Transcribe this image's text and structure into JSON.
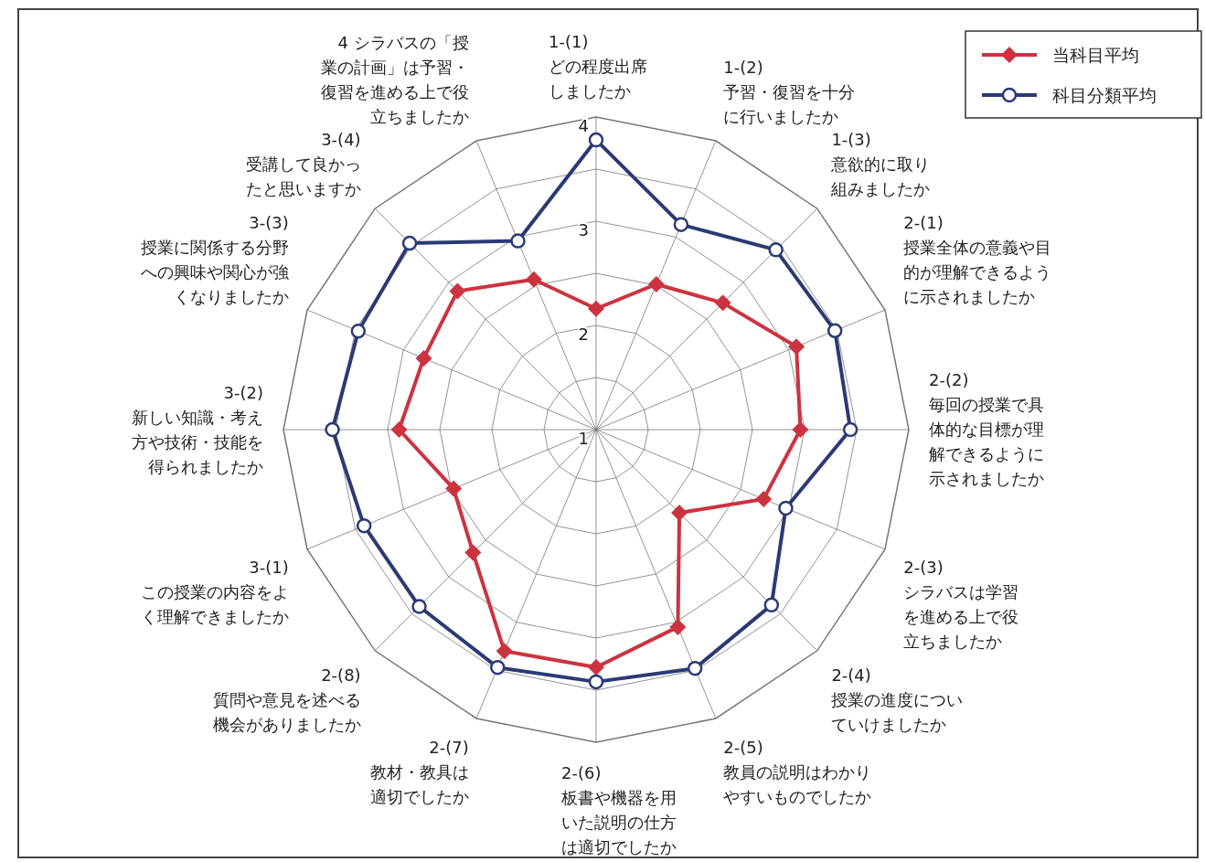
{
  "chart_data": {
    "type": "radar",
    "categories": [
      "1-(1)\nどの程度出席しましたか",
      "1-(2)\n予習・復習を十分に行いましたか",
      "1-(3)\n意欲的に取り組みましたか",
      "2-(1)\n授業全体の意義や目的が理解できるように示されましたか",
      "2-(2)\n毎回の授業で具体的な目標が理解できるように示されましたか",
      "2-(3)\nシラバスは学習を進める上で役立ちましたか",
      "2-(4)\n授業の進度についていけましたか",
      "2-(5)\n教員の説明はわかりやすいものでしたか",
      "2-(6)\n板書や機器を用いた説明の仕方は適切でしたか",
      "2-(7)\n教材・教具は適切でしたか",
      "2-(8)\n質問や意見を述べる機会がありましたか",
      "3-(1)\nこの授業の内容をよく理解できましたか",
      "3-(2)\n新しい知識・考え方や技術・技能を得られましたか",
      "3-(3)\n授業に関係する分野への興味や関心が強くなりましたか",
      "3-(4)\n受講して良かったと思いますか",
      "4 シラバスの「授業の計画」は予習・復習を進める上で役立ちましたか"
    ],
    "series": [
      {
        "name": "当科目平均",
        "color": "#cc3340",
        "marker": "diamond",
        "values": [
          2.16,
          2.51,
          2.72,
          3.08,
          2.96,
          2.74,
          2.13,
          3.05,
          3.28,
          3.3,
          2.67,
          2.48,
          2.89,
          2.79,
          2.88,
          2.56
        ]
      },
      {
        "name": "科目分類平均",
        "color": "#2b3a75",
        "marker": "circle",
        "values": [
          3.78,
          3.13,
          3.44,
          3.48,
          3.44,
          2.97,
          3.38,
          3.48,
          3.42,
          3.47,
          3.4,
          3.41,
          3.53,
          3.47,
          3.53,
          2.96
        ]
      }
    ],
    "ylim": [
      1,
      4
    ],
    "yticks": [
      1,
      2,
      3,
      4
    ],
    "grid": true,
    "legend": "top right"
  }
}
